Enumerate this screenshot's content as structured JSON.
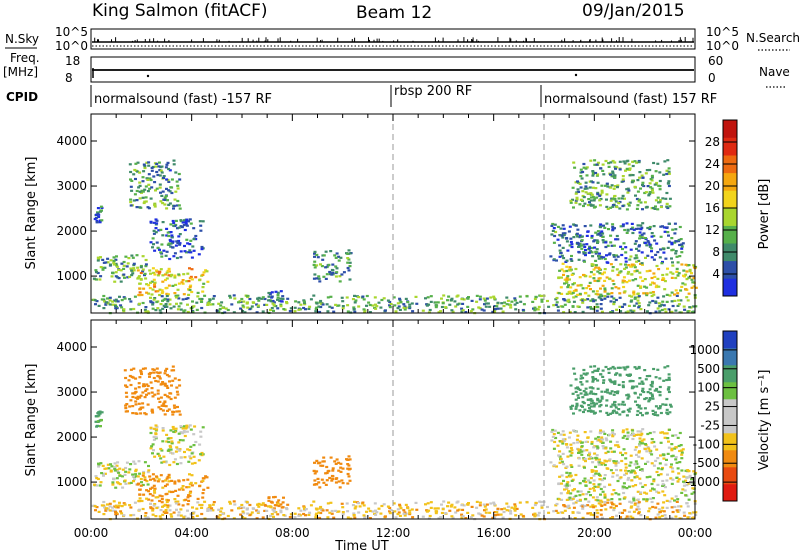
{
  "header": {
    "station": "King Salmon (fitACF)",
    "beam": "Beam 12",
    "date": "09/Jan/2015"
  },
  "side_labels": {
    "nsky": "N.Sky",
    "freq_line1": "Freq.",
    "freq_line2": "[MHz]",
    "cpid": "CPID",
    "nsearch": "N.Search",
    "nave": "Nave"
  },
  "panel_ticks": {
    "nsky_top": "10^5",
    "nsky_bottom": "10^0",
    "nsearch_top": "10^5",
    "nsearch_bottom": "10^0",
    "freq_top": "18",
    "freq_bottom": "8",
    "nave_top": "60",
    "nave_bottom": "0"
  },
  "cpid_segments": [
    {
      "label": "normalsound (fast) -157 RF"
    },
    {
      "label": "rbsp 200 RF"
    },
    {
      "label": "normalsound (fast) 157 RF"
    }
  ],
  "colors": {
    "power_scale": [
      "#1f2fe0",
      "#2d4fa8",
      "#3f8a6a",
      "#56b04a",
      "#a9d62e",
      "#f2d41c",
      "#f5a70f",
      "#ee6a10",
      "#e02a12",
      "#c0140e"
    ],
    "velocity_scale": [
      "#2040c0",
      "#3a78b0",
      "#4a9e6a",
      "#6cc040",
      "#c8c8c8",
      "#c8c8c8",
      "#f2c21a",
      "#f08a10",
      "#e84a10",
      "#e01a10"
    ]
  },
  "chart_data": [
    {
      "type": "heatmap",
      "panel": "power",
      "xlabel": "",
      "ylabel": "Slant Range [km]",
      "yticks": [
        "1000",
        "2000",
        "3000",
        "4000"
      ],
      "ylim": [
        180,
        4600
      ],
      "xlim_hours": [
        0,
        24
      ],
      "colorbar_label": "Power [dB]",
      "colorbar_ticks": [
        "4",
        "8",
        "12",
        "16",
        "20",
        "24",
        "28"
      ],
      "colorbar_range": [
        0,
        32
      ],
      "features": [
        {
          "t0": 0.0,
          "t1": 2.2,
          "r0": 900,
          "r1": 1500,
          "level": 10
        },
        {
          "t0": 1.8,
          "t1": 4.6,
          "r0": 600,
          "r1": 1200,
          "level": 18
        },
        {
          "t0": 0.1,
          "t1": 0.4,
          "r0": 2200,
          "r1": 2600,
          "level": 6
        },
        {
          "t0": 1.5,
          "t1": 3.5,
          "r0": 2500,
          "r1": 3600,
          "level": 9
        },
        {
          "t0": 2.3,
          "t1": 4.4,
          "r0": 1400,
          "r1": 2300,
          "level": 5
        },
        {
          "t0": 7.0,
          "t1": 7.6,
          "r0": 450,
          "r1": 700,
          "level": 5
        },
        {
          "t0": 8.8,
          "t1": 10.3,
          "r0": 900,
          "r1": 1600,
          "level": 9
        },
        {
          "t0": 0.0,
          "t1": 24.0,
          "r0": 200,
          "r1": 600,
          "level": 10
        },
        {
          "t0": 18.5,
          "t1": 24.0,
          "r0": 600,
          "r1": 1300,
          "level": 16
        },
        {
          "t0": 18.2,
          "t1": 23.5,
          "r0": 1300,
          "r1": 2200,
          "level": 7
        },
        {
          "t0": 19.0,
          "t1": 23.0,
          "r0": 2500,
          "r1": 3600,
          "level": 10
        }
      ]
    },
    {
      "type": "heatmap",
      "panel": "velocity",
      "xlabel": "Time UT",
      "ylabel": "Slant Range [km]",
      "xticks": [
        "00:00",
        "04:00",
        "08:00",
        "12:00",
        "16:00",
        "20:00",
        "00:00"
      ],
      "yticks": [
        "1000",
        "2000",
        "3000",
        "4000"
      ],
      "ylim": [
        180,
        4600
      ],
      "xlim_hours": [
        0,
        24
      ],
      "colorbar_label": "Velocity [m s⁻¹]",
      "colorbar_ticks": [
        "1000",
        "500",
        "100",
        "25",
        "-25",
        "-100",
        "-500",
        "-1000"
      ],
      "features": [
        {
          "t0": 0.0,
          "t1": 2.3,
          "r0": 900,
          "r1": 1500,
          "level": -10
        },
        {
          "t0": 1.8,
          "t1": 4.6,
          "r0": 600,
          "r1": 1200,
          "level": -120
        },
        {
          "t0": 1.3,
          "t1": 3.5,
          "r0": 2500,
          "r1": 3600,
          "level": -300
        },
        {
          "t0": 0.1,
          "t1": 0.4,
          "r0": 2200,
          "r1": 2600,
          "level": 150
        },
        {
          "t0": 2.3,
          "t1": 4.4,
          "r0": 1400,
          "r1": 2300,
          "level": -5
        },
        {
          "t0": 7.0,
          "t1": 7.6,
          "r0": 450,
          "r1": 700,
          "level": -300
        },
        {
          "t0": 8.8,
          "t1": 10.3,
          "r0": 900,
          "r1": 1600,
          "level": -200
        },
        {
          "t0": 0.0,
          "t1": 24.0,
          "r0": 200,
          "r1": 600,
          "level": -60
        },
        {
          "t0": 18.5,
          "t1": 24.0,
          "r0": 600,
          "r1": 1300,
          "level": 0
        },
        {
          "t0": 18.2,
          "t1": 23.5,
          "r0": 1300,
          "r1": 2200,
          "level": 0
        },
        {
          "t0": 19.0,
          "t1": 23.0,
          "r0": 2500,
          "r1": 3600,
          "level": 200
        }
      ]
    }
  ]
}
